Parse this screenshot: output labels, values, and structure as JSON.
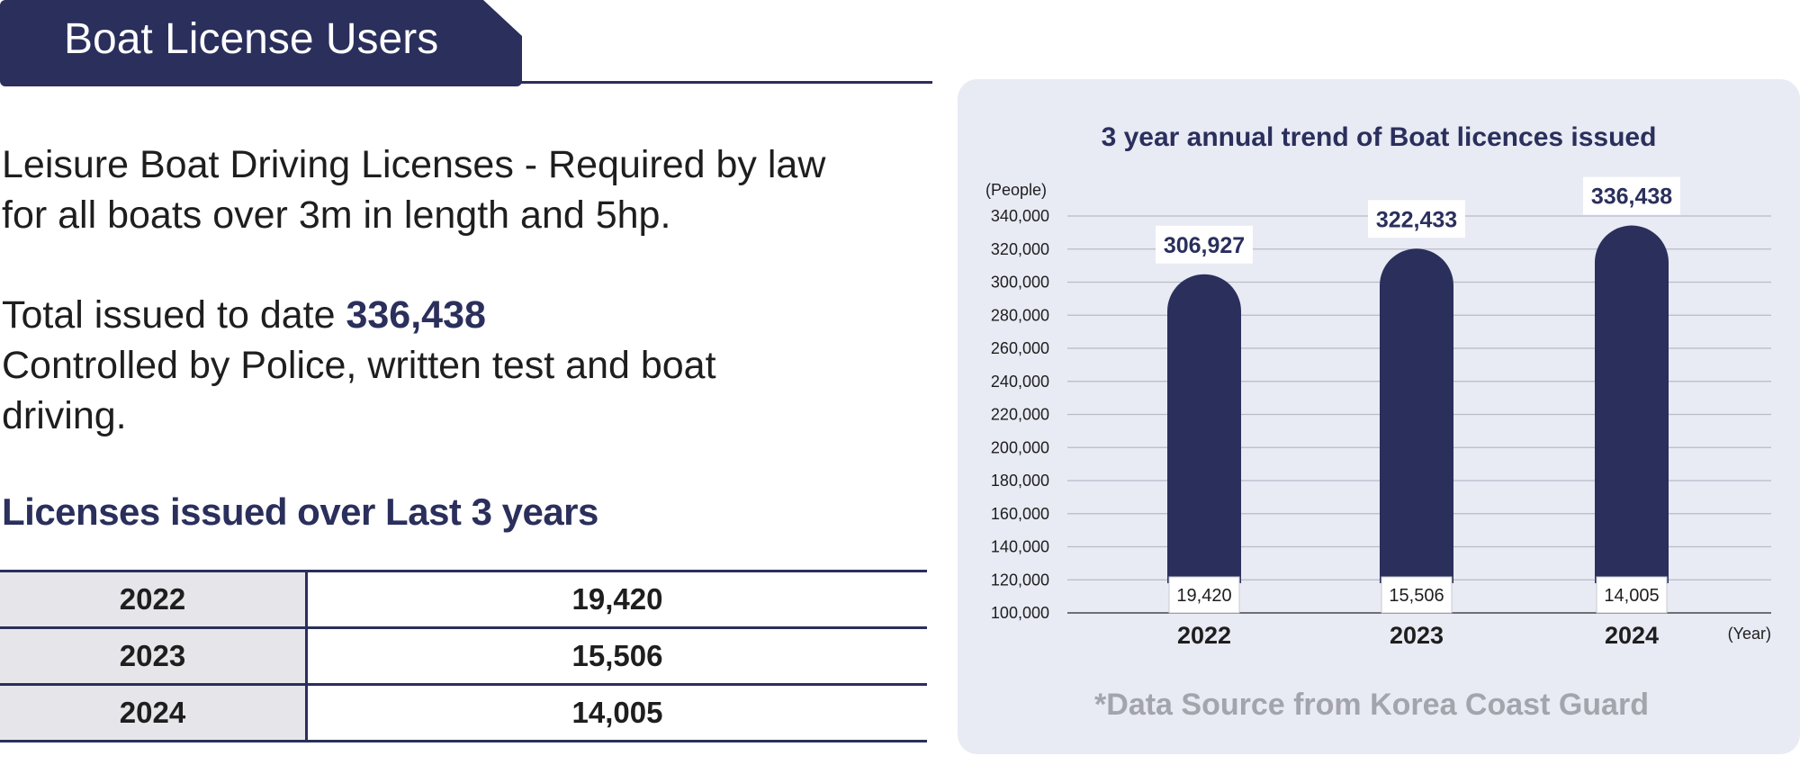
{
  "header": {
    "title": "Boat License Users"
  },
  "description": {
    "line1": "Leisure Boat Driving Licenses - Required by law",
    "line2": "for all boats over 3m in length and 5hp."
  },
  "total": {
    "label": "Total issued to date ",
    "value": "336,438",
    "control_line1": "Controlled by Police, written test and boat",
    "control_line2": "driving."
  },
  "table": {
    "heading": "Licenses issued over Last 3 years",
    "rows": [
      {
        "year": "2022",
        "value": "19,420"
      },
      {
        "year": "2023",
        "value": "15,506"
      },
      {
        "year": "2024",
        "value": "14,005"
      }
    ]
  },
  "chart_data": {
    "type": "bar",
    "title": "3 year annual trend of Boat licences issued",
    "ylabel": "(People)",
    "xlabel": "(Year)",
    "categories": [
      "2022",
      "2023",
      "2024"
    ],
    "values": [
      306927,
      322433,
      336438
    ],
    "value_labels": [
      "306,927",
      "322,433",
      "336,438"
    ],
    "base_labels": [
      "19,420",
      "15,506",
      "14,005"
    ],
    "yticks": [
      "340,000",
      "320,000",
      "300,000",
      "280,000",
      "260,000",
      "240,000",
      "220,000",
      "200,000",
      "180,000",
      "160,000",
      "140,000",
      "120,000",
      "100,000"
    ],
    "ylim": [
      100000,
      340000
    ],
    "grid": true,
    "bar_color": "#2a2f5c",
    "source": "*Data Source from Korea Coast Guard"
  },
  "colors": {
    "navy": "#2a2f5c",
    "panel": "#e8eaf4",
    "table_year_bg": "#e6e6ea"
  }
}
